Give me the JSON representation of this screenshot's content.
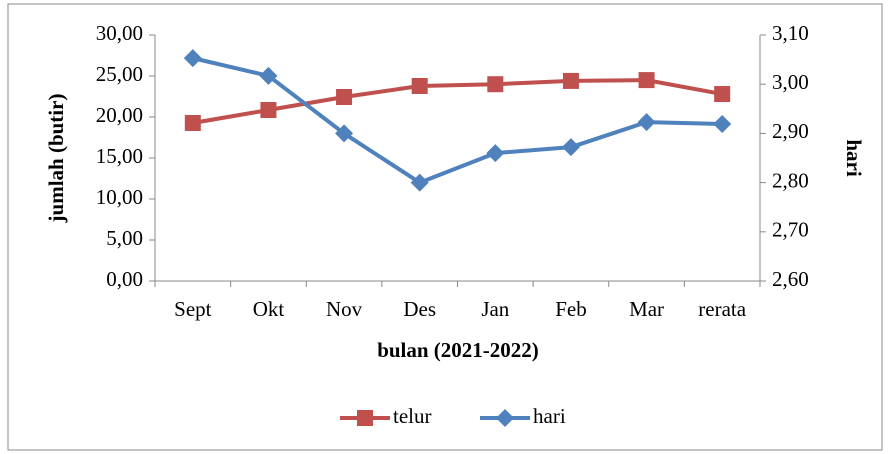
{
  "chart_data": {
    "type": "line",
    "x_label": "bulan (2021-2022)",
    "y_label": "jumlah (butir)",
    "y2_label": "hari",
    "categories": [
      "Sept",
      "Okt",
      "Nov",
      "Des",
      "Jan",
      "Feb",
      "Mar",
      "rerata"
    ],
    "series": [
      {
        "name": "telur",
        "color": "#c0504d",
        "marker": "square",
        "values": [
          19.27,
          20.85,
          22.44,
          23.78,
          24.0,
          24.4,
          24.5,
          22.8
        ]
      },
      {
        "name": "hari",
        "color": "#4f81bd",
        "marker": "diamond",
        "axis": "y2",
        "values": [
          3.053,
          3.017,
          2.9,
          2.8,
          2.86,
          2.872,
          2.923,
          2.919
        ]
      }
    ],
    "ylim": [
      0,
      30
    ],
    "yticks": [
      {
        "value": 0,
        "label": "0,00"
      },
      {
        "value": 5,
        "label": "5,00"
      },
      {
        "value": 10,
        "label": "10,00"
      },
      {
        "value": 15,
        "label": "15,00"
      },
      {
        "value": 20,
        "label": "20,00"
      },
      {
        "value": 25,
        "label": "25,00"
      },
      {
        "value": 30,
        "label": "30,00"
      }
    ],
    "y2lim": [
      2.6,
      3.1
    ],
    "y2ticks": [
      {
        "value": 2.6,
        "label": "2,60"
      },
      {
        "value": 2.7,
        "label": "2,70"
      },
      {
        "value": 2.8,
        "label": "2,80"
      },
      {
        "value": 2.9,
        "label": "2,90"
      },
      {
        "value": 3.0,
        "label": "3,00"
      },
      {
        "value": 3.1,
        "label": "3,10"
      }
    ],
    "legend": "bottom"
  }
}
